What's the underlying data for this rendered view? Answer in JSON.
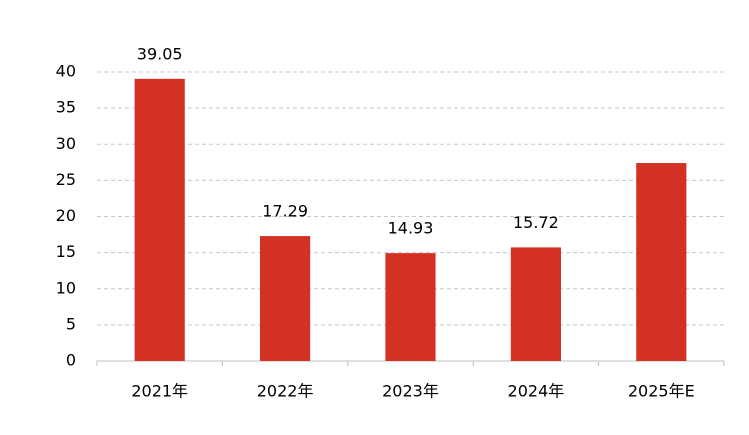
{
  "chart_data": {
    "type": "bar",
    "categories": [
      "2021年",
      "2022年",
      "2023年",
      "2024年",
      "2025年E"
    ],
    "values": [
      39.05,
      17.29,
      14.93,
      15.72,
      27.4
    ],
    "value_labels": [
      "39.05",
      "17.29",
      "14.93",
      "15.72",
      null
    ],
    "color": "#d33124",
    "ylim": [
      0,
      40
    ],
    "yticks": [
      0,
      5,
      10,
      15,
      20,
      25,
      30,
      35,
      40
    ],
    "grid": true
  }
}
